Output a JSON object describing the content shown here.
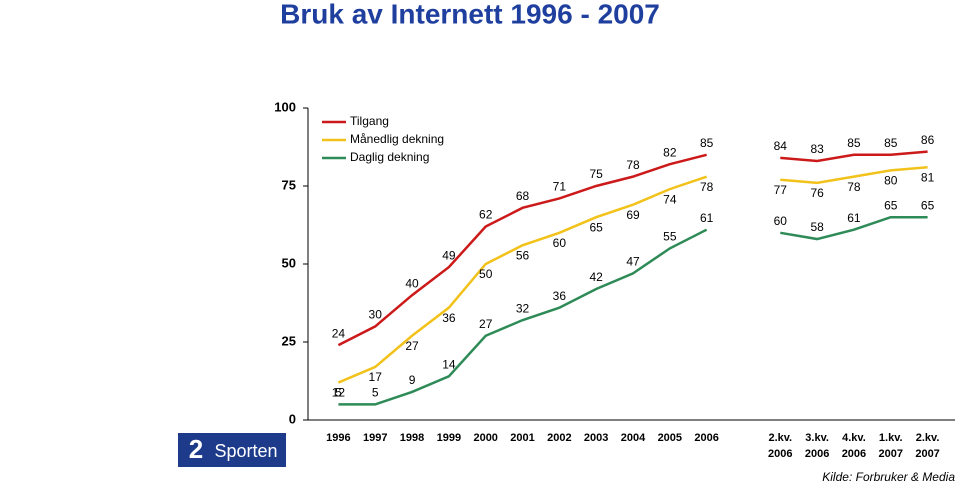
{
  "chart_data": {
    "type": "line",
    "title": "Bruk av Internett 1996 - 2007",
    "source": "Kilde: Forbruker & Media",
    "logo_number": "2",
    "logo_text": "Sporten",
    "categories": [
      "1996",
      "1997",
      "1998",
      "1999",
      "2000",
      "2001",
      "2002",
      "2003",
      "2004",
      "2005",
      "2006",
      null,
      "2.kv. 2006",
      "3.kv. 2006",
      "4.kv. 2006",
      "1.kv. 2007",
      "2.kv. 2007"
    ],
    "series": [
      {
        "name": "Tilgang",
        "color": "#cc1a1a",
        "values": [
          24,
          30,
          40,
          49,
          62,
          68,
          71,
          75,
          78,
          82,
          85,
          null,
          84,
          83,
          85,
          85,
          86
        ]
      },
      {
        "name": "Månedlig dekning",
        "color": "#f2c21b",
        "values": [
          12,
          17,
          27,
          36,
          50,
          56,
          60,
          65,
          69,
          74,
          78,
          null,
          77,
          76,
          78,
          80,
          81
        ]
      },
      {
        "name": "Daglig dekning",
        "color": "#2e8b57",
        "values": [
          5,
          5,
          9,
          14,
          27,
          32,
          36,
          42,
          47,
          55,
          61,
          null,
          60,
          58,
          61,
          65,
          65
        ]
      }
    ],
    "ylim": [
      0,
      100
    ],
    "yticks": [
      0,
      25,
      50,
      75,
      100
    ]
  }
}
